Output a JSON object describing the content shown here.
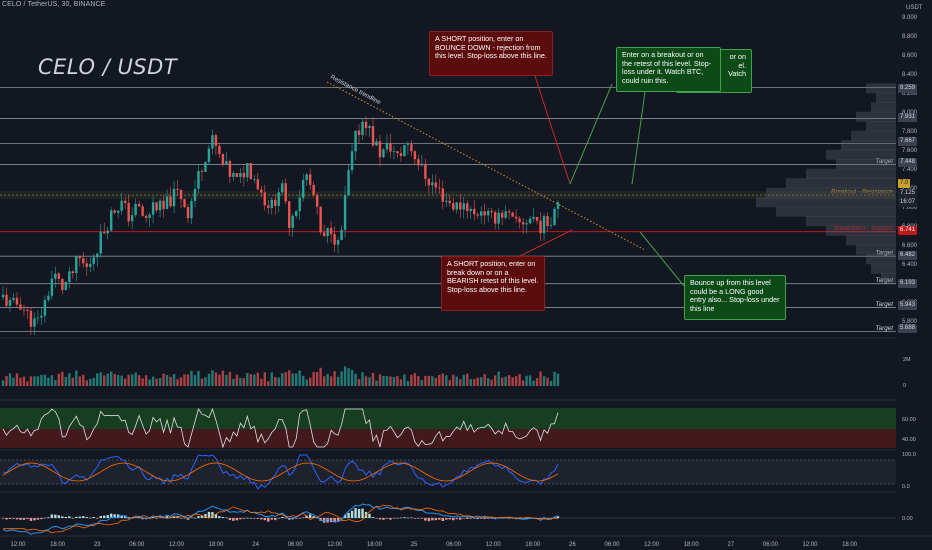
{
  "header": {
    "symbol_line": "CELO / TetherUS, 30, BINANCE",
    "title": "CELO / USDT",
    "unit": "USDT"
  },
  "annotations": {
    "short_top": "A SHORT position, enter on BOUNCE DOWN - rejection from this level. Stop-loss above this line.",
    "long_top": "Enter on a breakout or on the retest of this level. Stop-loss under it. Watch BTC, could ruin this.",
    "long_top_behind_1": "or on",
    "long_top_behind_2": "el.",
    "long_top_behind_3": "Vatch",
    "short_bottom": "A SHORT position, enter on break down or on a BEARISH retest of this level. Stop-loss above this line.",
    "long_bottom": "Bounce up from this level could be a LONG good entry also... Stop-loss under this line",
    "trendline_label": "Resistance trendline"
  },
  "level_labels": {
    "target": "Target",
    "breakout_resistance": "Breakout - Resistance",
    "breakdown_support": "Breakdown - Support"
  },
  "price_tags": {
    "current": "7.0",
    "current_sub": "7.125",
    "countdown": "16:07",
    "support": "6.741"
  },
  "indicator_axis": {
    "volume": [
      "2M",
      "0"
    ],
    "rsi": [
      "60.00",
      "40.00"
    ],
    "stoch": [
      "100.0",
      "0.0"
    ],
    "macd": [
      "0.00"
    ]
  },
  "colors": {
    "bg": "#131722",
    "up": "#26a69a",
    "down": "#ef5350",
    "support": "#c0181d",
    "resistance": "#c9a227",
    "grid": "#2a2e39"
  },
  "chart_data": {
    "type": "candlestick",
    "title": "CELO / USDT",
    "ylim": [
      5.6,
      9.05
    ],
    "yticks": [
      9.0,
      8.8,
      8.6,
      8.4,
      8.2,
      8.0,
      7.8,
      7.6,
      7.4,
      7.2,
      7.0,
      6.8,
      6.6,
      6.4,
      6.2,
      6.0,
      5.8
    ],
    "y_tick_labels": [
      "9.000",
      "8.800",
      "8.600",
      "8.400",
      "8.200",
      "8.000",
      "7.800",
      "7.600",
      "7.400",
      "7.200",
      "7.000",
      "6.800",
      "6.600",
      "6.400",
      "6.200",
      "6.000",
      "5.800"
    ],
    "x_tick_labels": [
      "12:00",
      "18:00",
      "23",
      "06:00",
      "12:00",
      "18:00",
      "24",
      "06:00",
      "12:00",
      "18:00",
      "25",
      "06:00",
      "12:00",
      "18:00",
      "26",
      "06:00",
      "12:00",
      "18:00",
      "27",
      "06:00",
      "12:00",
      "18:00"
    ],
    "levels": [
      {
        "value": 8.259,
        "label": "8.259",
        "style": "target"
      },
      {
        "value": 7.931,
        "label": "7.931",
        "style": "target"
      },
      {
        "value": 7.667,
        "label": "7.667",
        "style": "target"
      },
      {
        "value": 7.448,
        "label": "7.448",
        "style": "target",
        "name": "Target"
      },
      {
        "value": 7.125,
        "label": "",
        "style": "resistance",
        "name": "Breakout - Resistance"
      },
      {
        "value": 6.741,
        "label": "6.741",
        "style": "support",
        "name": "Breakdown - Support"
      },
      {
        "value": 6.482,
        "label": "6.482",
        "style": "target",
        "name": "Target"
      },
      {
        "value": 6.193,
        "label": "6.193",
        "style": "target",
        "name": "Target"
      },
      {
        "value": 5.943,
        "label": "5.943",
        "style": "target",
        "name": "Target"
      },
      {
        "value": 5.688,
        "label": "5.688",
        "style": "target",
        "name": "Target"
      }
    ],
    "price_path": [
      6.05,
      5.95,
      6.0,
      5.85,
      5.75,
      6.0,
      6.3,
      6.15,
      6.25,
      6.45,
      6.35,
      6.55,
      6.75,
      6.95,
      7.05,
      6.9,
      7.0,
      6.85,
      7.05,
      6.95,
      7.1,
      7.15,
      6.95,
      7.25,
      7.55,
      7.7,
      7.45,
      7.35,
      7.25,
      7.45,
      7.3,
      7.1,
      7.0,
      7.25,
      6.85,
      7.05,
      7.35,
      7.1,
      6.6,
      6.8,
      6.55,
      7.3,
      7.75,
      7.95,
      7.7,
      7.55,
      7.65,
      7.5,
      7.7,
      7.55,
      7.35,
      7.25,
      7.15,
      7.05,
      7.0,
      7.05,
      6.9,
      7.0,
      6.85,
      6.95,
      6.9,
      6.8,
      6.85,
      6.9,
      6.8,
      6.85,
      7.1
    ]
  }
}
